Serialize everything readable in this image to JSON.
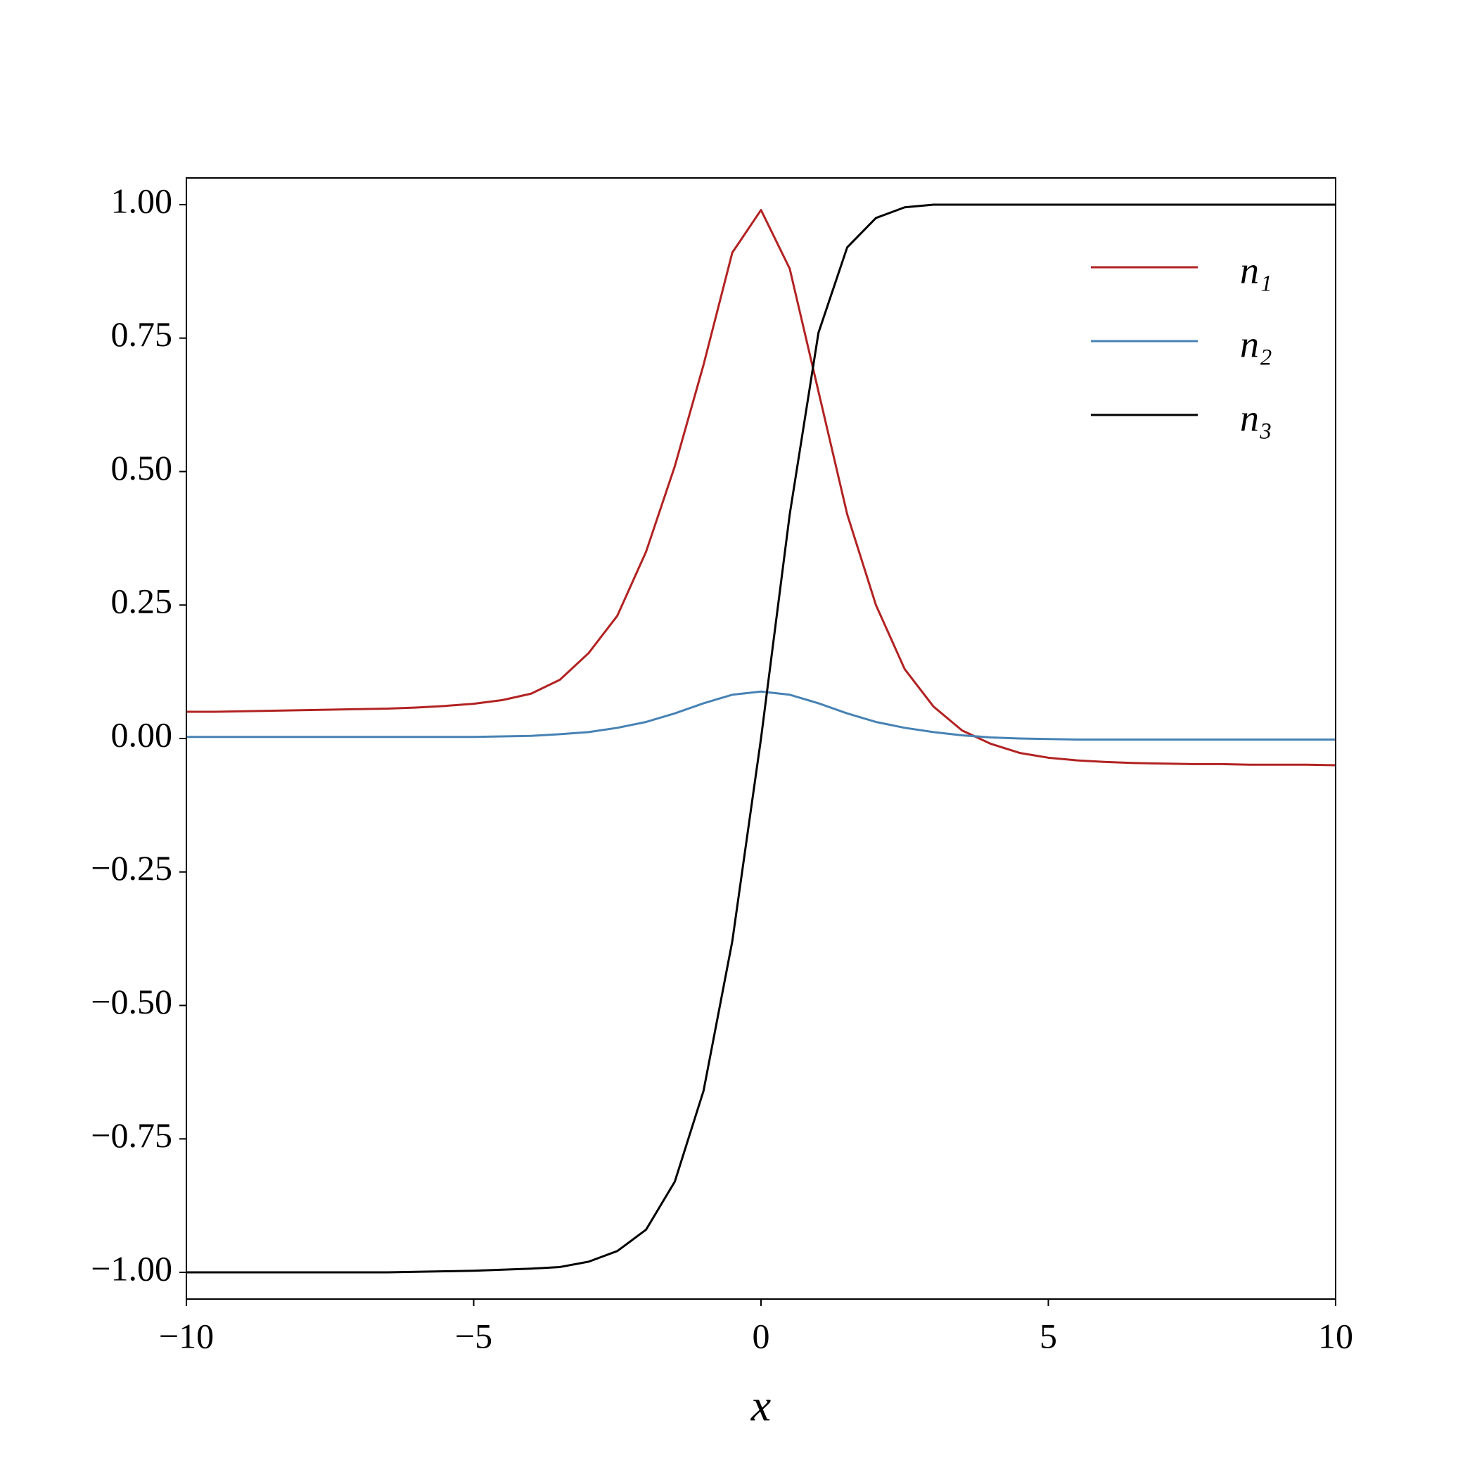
{
  "chart_data": {
    "type": "line",
    "x_label": "x",
    "x": [
      -10,
      -9.5,
      -9,
      -8.5,
      -8,
      -7.5,
      -7,
      -6.5,
      -6,
      -5.5,
      -5,
      -4.5,
      -4,
      -3.5,
      -3,
      -2.5,
      -2,
      -1.5,
      -1,
      -0.5,
      0,
      0.5,
      1,
      1.5,
      2,
      2.5,
      3,
      3.5,
      4,
      4.5,
      5,
      5.5,
      6,
      6.5,
      7,
      7.5,
      8,
      8.5,
      9,
      9.5,
      10
    ],
    "series": [
      {
        "name": "n₁",
        "color": "#b22222",
        "values": [
          0.05,
          0.05,
          0.051,
          0.052,
          0.053,
          0.054,
          0.055,
          0.056,
          0.058,
          0.061,
          0.065,
          0.072,
          0.084,
          0.11,
          0.16,
          0.23,
          0.35,
          0.51,
          0.7,
          0.91,
          0.99,
          0.88,
          0.65,
          0.42,
          0.25,
          0.13,
          0.06,
          0.015,
          -0.01,
          -0.027,
          -0.036,
          -0.041,
          -0.044,
          -0.046,
          -0.047,
          -0.048,
          -0.048,
          -0.049,
          -0.049,
          -0.049,
          -0.05
        ]
      },
      {
        "name": "n₂",
        "color": "#4682b4",
        "values": [
          0.003,
          0.003,
          0.003,
          0.003,
          0.003,
          0.003,
          0.003,
          0.003,
          0.003,
          0.003,
          0.003,
          0.004,
          0.005,
          0.008,
          0.012,
          0.02,
          0.031,
          0.047,
          0.066,
          0.082,
          0.088,
          0.082,
          0.066,
          0.047,
          0.031,
          0.02,
          0.012,
          0.006,
          0.002,
          0,
          -0.001,
          -0.002,
          -0.002,
          -0.002,
          -0.002,
          -0.002,
          -0.002,
          -0.002,
          -0.002,
          -0.002,
          -0.002
        ]
      },
      {
        "name": "n₃",
        "color": "#000000",
        "values": [
          -1,
          -1,
          -1,
          -1,
          -1,
          -1,
          -1,
          -1,
          -0.999,
          -0.998,
          -0.997,
          -0.995,
          -0.993,
          -0.99,
          -0.98,
          -0.96,
          -0.92,
          -0.83,
          -0.66,
          -0.38,
          0,
          0.42,
          0.76,
          0.92,
          0.975,
          0.995,
          1,
          1,
          1,
          1,
          1,
          1,
          1,
          1,
          1,
          1,
          1,
          1,
          1,
          1,
          1
        ]
      }
    ],
    "xlim": [
      -10,
      10
    ],
    "ylim": [
      -1.05,
      1.05
    ],
    "xticks": [
      {
        "value": -10,
        "label": "−10"
      },
      {
        "value": -5,
        "label": "−5"
      },
      0,
      5,
      10
    ],
    "yticks": [
      {
        "value": -1,
        "label": "−1.00"
      },
      {
        "value": -0.75,
        "label": "−0.75"
      },
      {
        "value": -0.5,
        "label": "−0.50"
      },
      {
        "value": -0.25,
        "label": "−0.25"
      },
      {
        "value": 0,
        "label": "0.00"
      },
      {
        "value": 0.25,
        "label": "0.25"
      },
      {
        "value": 0.5,
        "label": "0.50"
      },
      {
        "value": 0.75,
        "label": "0.75"
      },
      {
        "value": 1,
        "label": "1.00"
      }
    ],
    "legend": "upper right"
  }
}
